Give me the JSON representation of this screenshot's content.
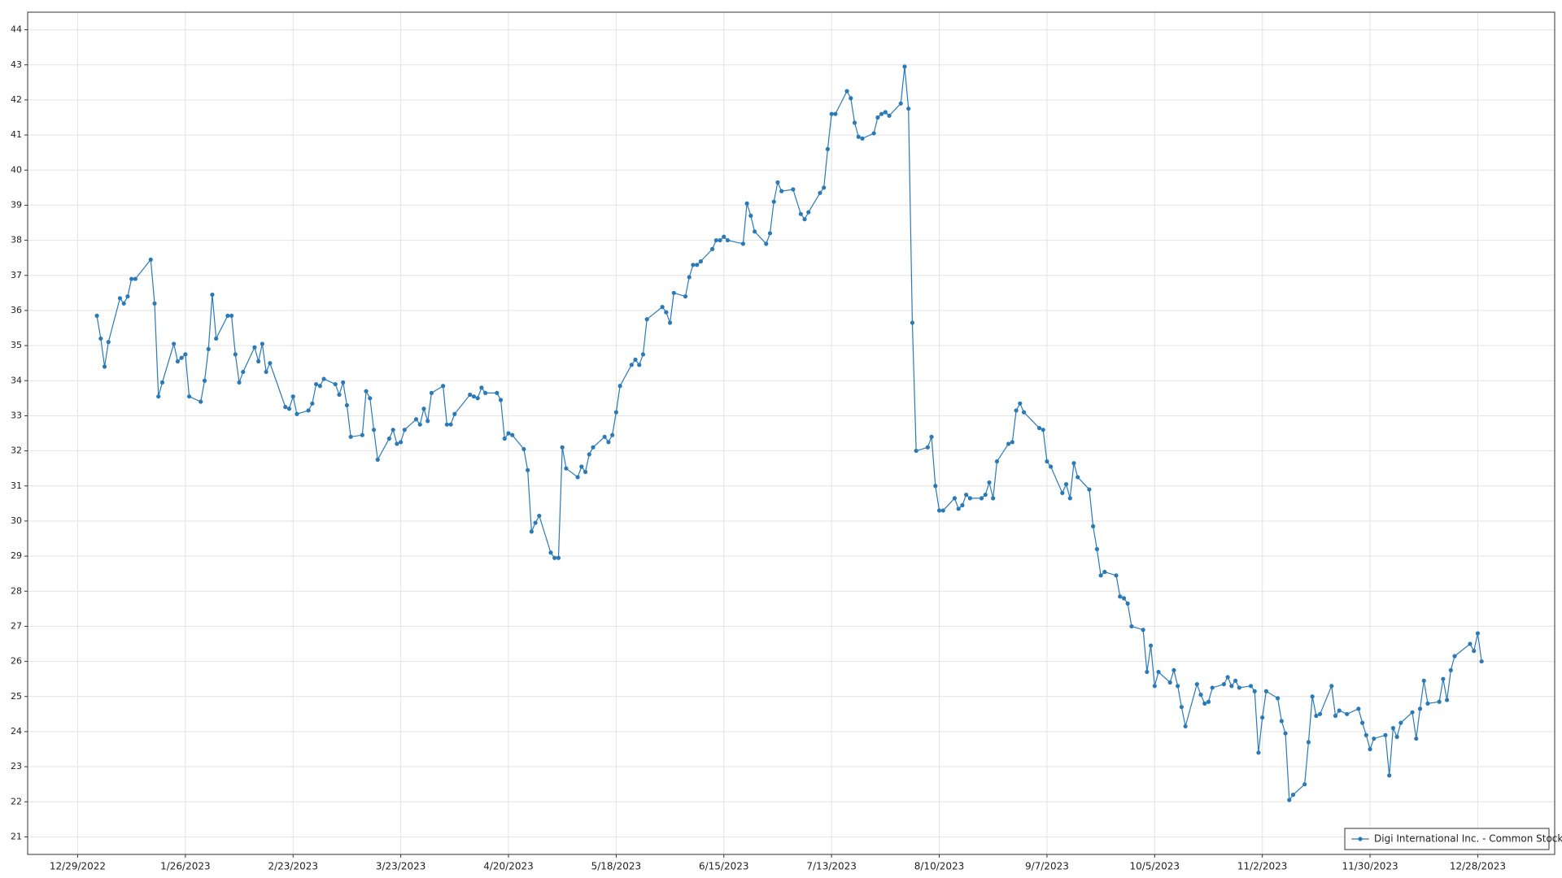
{
  "chart_data": {
    "type": "line",
    "x": [
      "2023-01-03",
      "2023-01-04",
      "2023-01-05",
      "2023-01-06",
      "2023-01-09",
      "2023-01-10",
      "2023-01-11",
      "2023-01-12",
      "2023-01-13",
      "2023-01-17",
      "2023-01-18",
      "2023-01-19",
      "2023-01-20",
      "2023-01-23",
      "2023-01-24",
      "2023-01-25",
      "2023-01-26",
      "2023-01-27",
      "2023-01-30",
      "2023-01-31",
      "2023-02-01",
      "2023-02-02",
      "2023-02-03",
      "2023-02-06",
      "2023-02-07",
      "2023-02-08",
      "2023-02-09",
      "2023-02-10",
      "2023-02-13",
      "2023-02-14",
      "2023-02-15",
      "2023-02-16",
      "2023-02-17",
      "2023-02-21",
      "2023-02-22",
      "2023-02-23",
      "2023-02-24",
      "2023-02-27",
      "2023-02-28",
      "2023-03-01",
      "2023-03-02",
      "2023-03-03",
      "2023-03-06",
      "2023-03-07",
      "2023-03-08",
      "2023-03-09",
      "2023-03-10",
      "2023-03-13",
      "2023-03-14",
      "2023-03-15",
      "2023-03-16",
      "2023-03-17",
      "2023-03-20",
      "2023-03-21",
      "2023-03-22",
      "2023-03-23",
      "2023-03-24",
      "2023-03-27",
      "2023-03-28",
      "2023-03-29",
      "2023-03-30",
      "2023-03-31",
      "2023-04-03",
      "2023-04-04",
      "2023-04-05",
      "2023-04-06",
      "2023-04-10",
      "2023-04-11",
      "2023-04-12",
      "2023-04-13",
      "2023-04-14",
      "2023-04-17",
      "2023-04-18",
      "2023-04-19",
      "2023-04-20",
      "2023-04-21",
      "2023-04-24",
      "2023-04-25",
      "2023-04-26",
      "2023-04-27",
      "2023-04-28",
      "2023-05-01",
      "2023-05-02",
      "2023-05-03",
      "2023-05-04",
      "2023-05-05",
      "2023-05-08",
      "2023-05-09",
      "2023-05-10",
      "2023-05-11",
      "2023-05-12",
      "2023-05-15",
      "2023-05-16",
      "2023-05-17",
      "2023-05-18",
      "2023-05-19",
      "2023-05-22",
      "2023-05-23",
      "2023-05-24",
      "2023-05-25",
      "2023-05-26",
      "2023-05-30",
      "2023-05-31",
      "2023-06-01",
      "2023-06-02",
      "2023-06-05",
      "2023-06-06",
      "2023-06-07",
      "2023-06-08",
      "2023-06-09",
      "2023-06-12",
      "2023-06-13",
      "2023-06-14",
      "2023-06-15",
      "2023-06-16",
      "2023-06-20",
      "2023-06-21",
      "2023-06-22",
      "2023-06-23",
      "2023-06-26",
      "2023-06-27",
      "2023-06-28",
      "2023-06-29",
      "2023-06-30",
      "2023-07-03",
      "2023-07-05",
      "2023-07-06",
      "2023-07-07",
      "2023-07-10",
      "2023-07-11",
      "2023-07-12",
      "2023-07-13",
      "2023-07-14",
      "2023-07-17",
      "2023-07-18",
      "2023-07-19",
      "2023-07-20",
      "2023-07-21",
      "2023-07-24",
      "2023-07-25",
      "2023-07-26",
      "2023-07-27",
      "2023-07-28",
      "2023-07-31",
      "2023-08-01",
      "2023-08-02",
      "2023-08-03",
      "2023-08-04",
      "2023-08-07",
      "2023-08-08",
      "2023-08-09",
      "2023-08-10",
      "2023-08-11",
      "2023-08-14",
      "2023-08-15",
      "2023-08-16",
      "2023-08-17",
      "2023-08-18",
      "2023-08-21",
      "2023-08-22",
      "2023-08-23",
      "2023-08-24",
      "2023-08-25",
      "2023-08-28",
      "2023-08-29",
      "2023-08-30",
      "2023-08-31",
      "2023-09-01",
      "2023-09-05",
      "2023-09-06",
      "2023-09-07",
      "2023-09-08",
      "2023-09-11",
      "2023-09-12",
      "2023-09-13",
      "2023-09-14",
      "2023-09-15",
      "2023-09-18",
      "2023-09-19",
      "2023-09-20",
      "2023-09-21",
      "2023-09-22",
      "2023-09-25",
      "2023-09-26",
      "2023-09-27",
      "2023-09-28",
      "2023-09-29",
      "2023-10-02",
      "2023-10-03",
      "2023-10-04",
      "2023-10-05",
      "2023-10-06",
      "2023-10-09",
      "2023-10-10",
      "2023-10-11",
      "2023-10-12",
      "2023-10-13",
      "2023-10-16",
      "2023-10-17",
      "2023-10-18",
      "2023-10-19",
      "2023-10-20",
      "2023-10-23",
      "2023-10-24",
      "2023-10-25",
      "2023-10-26",
      "2023-10-27",
      "2023-10-30",
      "2023-10-31",
      "2023-11-01",
      "2023-11-02",
      "2023-11-03",
      "2023-11-06",
      "2023-11-07",
      "2023-11-08",
      "2023-11-09",
      "2023-11-10",
      "2023-11-13",
      "2023-11-14",
      "2023-11-15",
      "2023-11-16",
      "2023-11-17",
      "2023-11-20",
      "2023-11-21",
      "2023-11-22",
      "2023-11-24",
      "2023-11-27",
      "2023-11-28",
      "2023-11-29",
      "2023-11-30",
      "2023-12-01",
      "2023-12-04",
      "2023-12-05",
      "2023-12-06",
      "2023-12-07",
      "2023-12-08",
      "2023-12-11",
      "2023-12-12",
      "2023-12-13",
      "2023-12-14",
      "2023-12-15",
      "2023-12-18",
      "2023-12-19",
      "2023-12-20",
      "2023-12-21",
      "2023-12-22",
      "2023-12-26",
      "2023-12-27",
      "2023-12-28",
      "2023-12-29"
    ],
    "series": [
      {
        "name": "Digi International Inc. - Common Stock",
        "color": "#2a7ab8",
        "values": [
          35.85,
          35.2,
          34.4,
          35.1,
          36.35,
          36.2,
          36.4,
          36.9,
          36.9,
          37.45,
          36.2,
          33.55,
          33.95,
          35.05,
          34.55,
          34.65,
          34.75,
          33.55,
          33.4,
          34.0,
          34.9,
          36.45,
          35.2,
          35.85,
          35.85,
          34.75,
          33.95,
          34.25,
          34.95,
          34.55,
          35.05,
          34.25,
          34.5,
          33.25,
          33.2,
          33.55,
          33.05,
          33.15,
          33.35,
          33.9,
          33.85,
          34.05,
          33.9,
          33.6,
          33.95,
          33.3,
          32.4,
          32.45,
          33.7,
          33.5,
          32.6,
          31.75,
          32.35,
          32.6,
          32.2,
          32.25,
          32.6,
          32.9,
          32.75,
          33.2,
          32.85,
          33.65,
          33.85,
          32.75,
          32.75,
          33.05,
          33.6,
          33.55,
          33.5,
          33.8,
          33.65,
          33.65,
          33.45,
          32.35,
          32.5,
          32.45,
          32.05,
          31.45,
          29.7,
          29.95,
          30.15,
          29.1,
          28.95,
          28.95,
          32.1,
          31.5,
          31.25,
          31.55,
          31.4,
          31.9,
          32.1,
          32.4,
          32.25,
          32.45,
          33.1,
          33.85,
          34.45,
          34.6,
          34.45,
          34.75,
          35.75,
          36.1,
          35.95,
          35.65,
          36.5,
          36.4,
          36.95,
          37.3,
          37.3,
          37.4,
          37.75,
          38.0,
          38.0,
          38.1,
          38.0,
          37.9,
          39.05,
          38.7,
          38.25,
          37.9,
          38.2,
          39.1,
          39.65,
          39.4,
          39.45,
          38.75,
          38.6,
          38.8,
          39.35,
          39.5,
          40.6,
          41.6,
          41.6,
          42.25,
          42.05,
          41.35,
          40.95,
          40.9,
          41.05,
          41.5,
          41.6,
          41.65,
          41.55,
          41.9,
          42.95,
          41.75,
          35.65,
          32.0,
          32.1,
          32.4,
          31.0,
          30.3,
          30.3,
          30.65,
          30.35,
          30.45,
          30.75,
          30.65,
          30.65,
          30.75,
          31.1,
          30.65,
          31.7,
          32.2,
          32.25,
          33.15,
          33.35,
          33.1,
          32.65,
          32.6,
          31.7,
          31.55,
          30.8,
          31.05,
          30.65,
          31.65,
          31.25,
          30.9,
          29.85,
          29.2,
          28.45,
          28.55,
          28.45,
          27.85,
          27.8,
          27.65,
          27.0,
          26.9,
          25.7,
          26.45,
          25.3,
          25.7,
          25.4,
          25.75,
          25.3,
          24.7,
          24.15,
          25.35,
          25.05,
          24.8,
          24.85,
          25.25,
          25.35,
          25.55,
          25.3,
          25.45,
          25.25,
          25.3,
          25.15,
          23.4,
          24.4,
          25.15,
          24.95,
          24.3,
          23.95,
          22.05,
          22.2,
          22.5,
          23.7,
          25.0,
          24.45,
          24.5,
          25.3,
          24.45,
          24.6,
          24.5,
          24.65,
          24.25,
          23.9,
          23.5,
          23.8,
          23.9,
          22.75,
          24.1,
          23.85,
          24.25,
          24.55,
          23.8,
          24.65,
          25.45,
          24.8,
          24.85,
          25.5,
          24.9,
          25.75,
          26.15,
          26.5,
          26.3,
          26.8,
          26.0
        ]
      }
    ],
    "xlim": [
      "2022-12-16",
      "2024-01-17"
    ],
    "xticks": [
      {
        "value": "2022-12-29",
        "label": "12/29/2022"
      },
      {
        "value": "2023-01-26",
        "label": "1/26/2023"
      },
      {
        "value": "2023-02-23",
        "label": "2/23/2023"
      },
      {
        "value": "2023-03-23",
        "label": "3/23/2023"
      },
      {
        "value": "2023-04-20",
        "label": "4/20/2023"
      },
      {
        "value": "2023-05-18",
        "label": "5/18/2023"
      },
      {
        "value": "2023-06-15",
        "label": "6/15/2023"
      },
      {
        "value": "2023-07-13",
        "label": "7/13/2023"
      },
      {
        "value": "2023-08-10",
        "label": "8/10/2023"
      },
      {
        "value": "2023-09-07",
        "label": "9/7/2023"
      },
      {
        "value": "2023-10-05",
        "label": "10/5/2023"
      },
      {
        "value": "2023-11-02",
        "label": "11/2/2023"
      },
      {
        "value": "2023-11-30",
        "label": "11/30/2023"
      },
      {
        "value": "2023-12-28",
        "label": "12/28/2023"
      }
    ],
    "ylim": [
      20.5,
      44.5
    ],
    "yticks": [
      21,
      22,
      23,
      24,
      25,
      26,
      27,
      28,
      29,
      30,
      31,
      32,
      33,
      34,
      35,
      36,
      37,
      38,
      39,
      40,
      41,
      42,
      43,
      44
    ],
    "grid": true,
    "legend": "lower right",
    "markers": true
  }
}
